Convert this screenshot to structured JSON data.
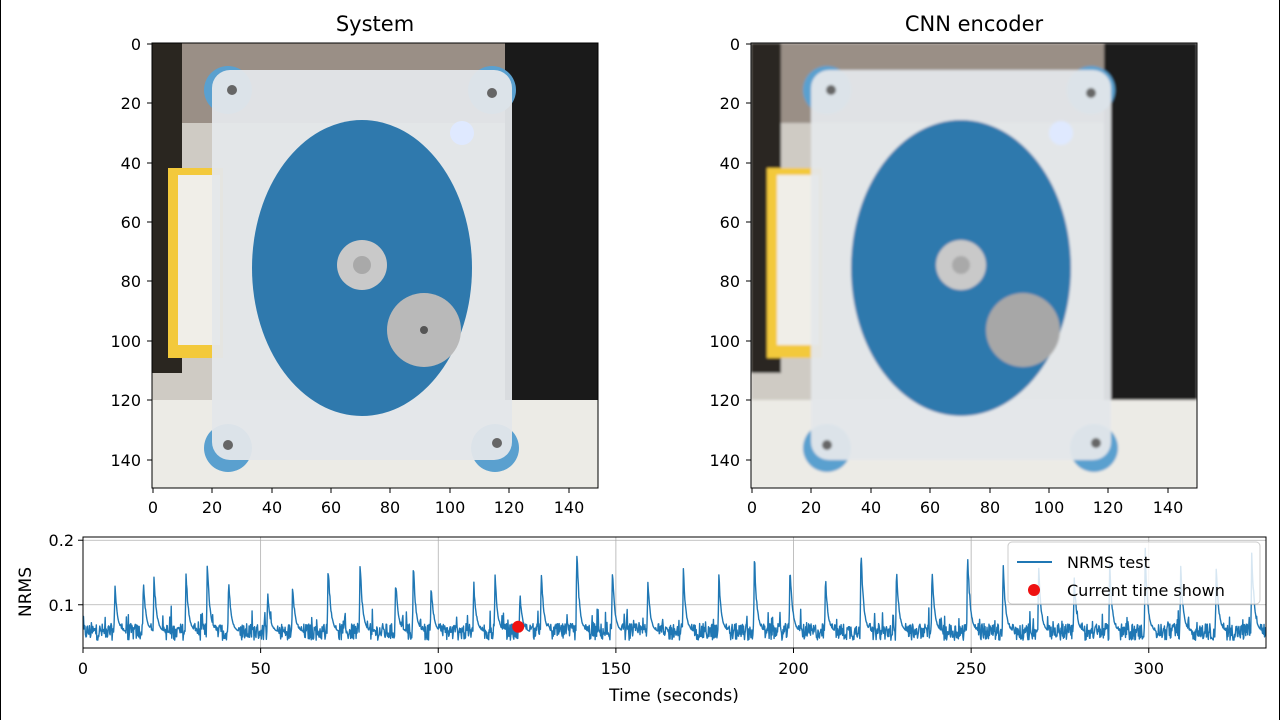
{
  "colors": {
    "line": "#1f77b4",
    "marker": "#ee1111",
    "grid": "#b0b0b0",
    "disk": "#2f79ad",
    "frame": "#e4e7ea",
    "background_dark": "#1a1a1a",
    "yellow_block": "#f3c93b",
    "table": "#ecebe6"
  },
  "chart_data": [
    {
      "type": "image",
      "title": "System",
      "xlim": [
        0,
        150
      ],
      "ylim": [
        150,
        0
      ],
      "xticks": [
        "0",
        "20",
        "40",
        "60",
        "80",
        "100",
        "120",
        "140"
      ],
      "yticks": [
        "0",
        "20",
        "40",
        "60",
        "80",
        "100",
        "120",
        "140"
      ],
      "content": "photo of a blue rotating disk unbalance setup"
    },
    {
      "type": "image",
      "title": "CNN encoder",
      "xlim": [
        0,
        150
      ],
      "ylim": [
        150,
        0
      ],
      "xticks": [
        "0",
        "20",
        "40",
        "60",
        "80",
        "100",
        "120",
        "140"
      ],
      "yticks": [
        "0",
        "20",
        "40",
        "60",
        "80",
        "100",
        "120",
        "140"
      ],
      "content": "reconstructed image of the blue rotating disk setup"
    },
    {
      "type": "line",
      "xlabel": "Time (seconds)",
      "ylabel": "NRMS",
      "xlim": [
        0,
        333
      ],
      "ylim": [
        0.033,
        0.205
      ],
      "xticks": [
        "0",
        "50",
        "100",
        "150",
        "200",
        "250",
        "300"
      ],
      "yticks": [
        "0.1",
        "0.2"
      ],
      "grid": true,
      "legend_position": "top-right",
      "series": [
        {
          "name": "NRMS test",
          "baseline": 0.058,
          "noise_amplitude": 0.02,
          "peaks": [
            {
              "x": 9,
              "y": 0.139
            },
            {
              "x": 17,
              "y": 0.145
            },
            {
              "x": 20,
              "y": 0.153
            },
            {
              "x": 29,
              "y": 0.158
            },
            {
              "x": 35,
              "y": 0.178
            },
            {
              "x": 41,
              "y": 0.148
            },
            {
              "x": 52,
              "y": 0.123
            },
            {
              "x": 59,
              "y": 0.135
            },
            {
              "x": 69,
              "y": 0.175
            },
            {
              "x": 78,
              "y": 0.175
            },
            {
              "x": 88,
              "y": 0.148
            },
            {
              "x": 93,
              "y": 0.17
            },
            {
              "x": 98,
              "y": 0.14
            },
            {
              "x": 110,
              "y": 0.14
            },
            {
              "x": 116,
              "y": 0.15
            },
            {
              "x": 123,
              "y": 0.12
            },
            {
              "x": 129,
              "y": 0.16
            },
            {
              "x": 139,
              "y": 0.198
            },
            {
              "x": 149,
              "y": 0.163
            },
            {
              "x": 159,
              "y": 0.143
            },
            {
              "x": 169,
              "y": 0.16
            },
            {
              "x": 179,
              "y": 0.153
            },
            {
              "x": 189,
              "y": 0.185
            },
            {
              "x": 199,
              "y": 0.173
            },
            {
              "x": 209,
              "y": 0.148
            },
            {
              "x": 219,
              "y": 0.2
            },
            {
              "x": 229,
              "y": 0.167
            },
            {
              "x": 239,
              "y": 0.16
            },
            {
              "x": 249,
              "y": 0.196
            },
            {
              "x": 259,
              "y": 0.173
            },
            {
              "x": 269,
              "y": 0.165
            },
            {
              "x": 279,
              "y": 0.15
            },
            {
              "x": 289,
              "y": 0.17
            },
            {
              "x": 299,
              "y": 0.19
            },
            {
              "x": 309,
              "y": 0.165
            },
            {
              "x": 319,
              "y": 0.163
            },
            {
              "x": 329,
              "y": 0.193
            }
          ]
        },
        {
          "name": "Current time shown",
          "type": "scatter",
          "x": [
            122.5
          ],
          "y": [
            0.066
          ]
        }
      ]
    }
  ]
}
